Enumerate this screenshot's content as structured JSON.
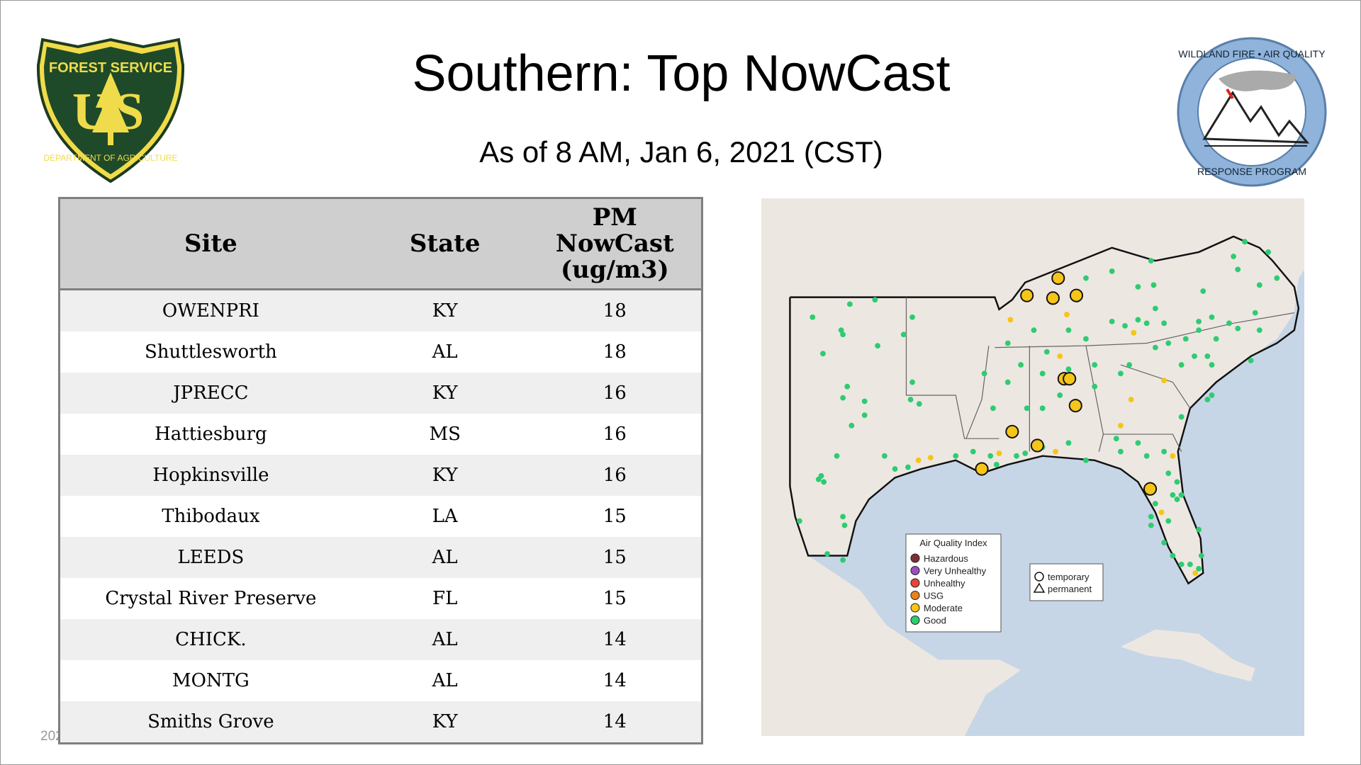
{
  "header": {
    "title": "Southern: Top NowCast",
    "subtitle": "As of  8 AM, Jan  6, 2021 (CST)"
  },
  "logos": {
    "left": "FOREST SERVICE U S DEPARTMENT OF AGRICULTURE",
    "right": "WILDLAND FIRE • AIR QUALITY RESPONSE PROGRAM"
  },
  "table": {
    "columns": [
      "Site",
      "State",
      "PM NowCast (ug/m3)"
    ],
    "rows": [
      [
        "OWENPRI",
        "KY",
        "18"
      ],
      [
        "Shuttlesworth",
        "AL",
        "18"
      ],
      [
        "JPRECC",
        "KY",
        "16"
      ],
      [
        "Hattiesburg",
        "MS",
        "16"
      ],
      [
        "Hopkinsville",
        "KY",
        "16"
      ],
      [
        "Thibodaux",
        "LA",
        "15"
      ],
      [
        "LEEDS",
        "AL",
        "15"
      ],
      [
        "Crystal River Preserve",
        "FL",
        "15"
      ],
      [
        "CHICK.",
        "AL",
        "14"
      ],
      [
        "MONTG",
        "AL",
        "14"
      ],
      [
        "Smiths Grove",
        "KY",
        "14"
      ]
    ]
  },
  "map": {
    "legend_title": "Air Quality Index",
    "aqi": [
      {
        "label": "Hazardous",
        "color": "#7e2f33"
      },
      {
        "label": "Very Unhealthy",
        "color": "#9b4fc0"
      },
      {
        "label": "Unhealthy",
        "color": "#e8443a"
      },
      {
        "label": "USG",
        "color": "#e8821e"
      },
      {
        "label": "Moderate",
        "color": "#f5c518"
      },
      {
        "label": "Good",
        "color": "#2ecc71"
      }
    ],
    "shapes": [
      {
        "label": "temporary",
        "icon": "circle-icon"
      },
      {
        "label": "permanent",
        "icon": "triangle-icon"
      }
    ],
    "colors": {
      "land": "#ede7e2",
      "water": "#c6d6e6"
    }
  },
  "footer": {
    "timestamp": "202"
  }
}
